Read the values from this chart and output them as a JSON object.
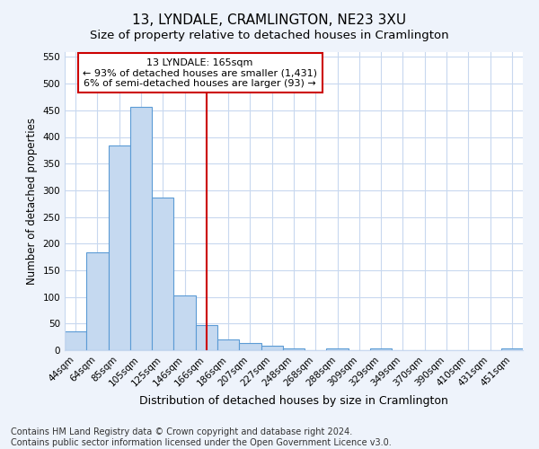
{
  "title": "13, LYNDALE, CRAMLINGTON, NE23 3XU",
  "subtitle": "Size of property relative to detached houses in Cramlington",
  "xlabel": "Distribution of detached houses by size in Cramlington",
  "ylabel": "Number of detached properties",
  "categories": [
    "44sqm",
    "64sqm",
    "85sqm",
    "105sqm",
    "125sqm",
    "146sqm",
    "166sqm",
    "186sqm",
    "207sqm",
    "227sqm",
    "248sqm",
    "268sqm",
    "288sqm",
    "309sqm",
    "329sqm",
    "349sqm",
    "370sqm",
    "390sqm",
    "410sqm",
    "431sqm",
    "451sqm"
  ],
  "values": [
    35,
    183,
    384,
    456,
    287,
    103,
    47,
    20,
    14,
    9,
    3,
    0,
    4,
    0,
    4,
    0,
    0,
    0,
    0,
    0,
    3
  ],
  "bar_color": "#c5d9f0",
  "bar_edge_color": "#5b9bd5",
  "property_label": "13 LYNDALE: 165sqm",
  "annotation_line1": "← 93% of detached houses are smaller (1,431)",
  "annotation_line2": "6% of semi-detached houses are larger (93) →",
  "annotation_box_color": "#ffffff",
  "annotation_box_edge_color": "#cc0000",
  "vline_color": "#cc0000",
  "vline_x_index": 6,
  "ylim": [
    0,
    560
  ],
  "yticks": [
    0,
    50,
    100,
    150,
    200,
    250,
    300,
    350,
    400,
    450,
    500,
    550
  ],
  "footnote1": "Contains HM Land Registry data © Crown copyright and database right 2024.",
  "footnote2": "Contains public sector information licensed under the Open Government Licence v3.0.",
  "background_color": "#eef3fb",
  "plot_bg_color": "#ffffff",
  "grid_color": "#c8d8ef",
  "title_fontsize": 11,
  "subtitle_fontsize": 9.5,
  "xlabel_fontsize": 9,
  "ylabel_fontsize": 8.5,
  "tick_fontsize": 7.5,
  "annotation_fontsize": 8,
  "footnote_fontsize": 7
}
